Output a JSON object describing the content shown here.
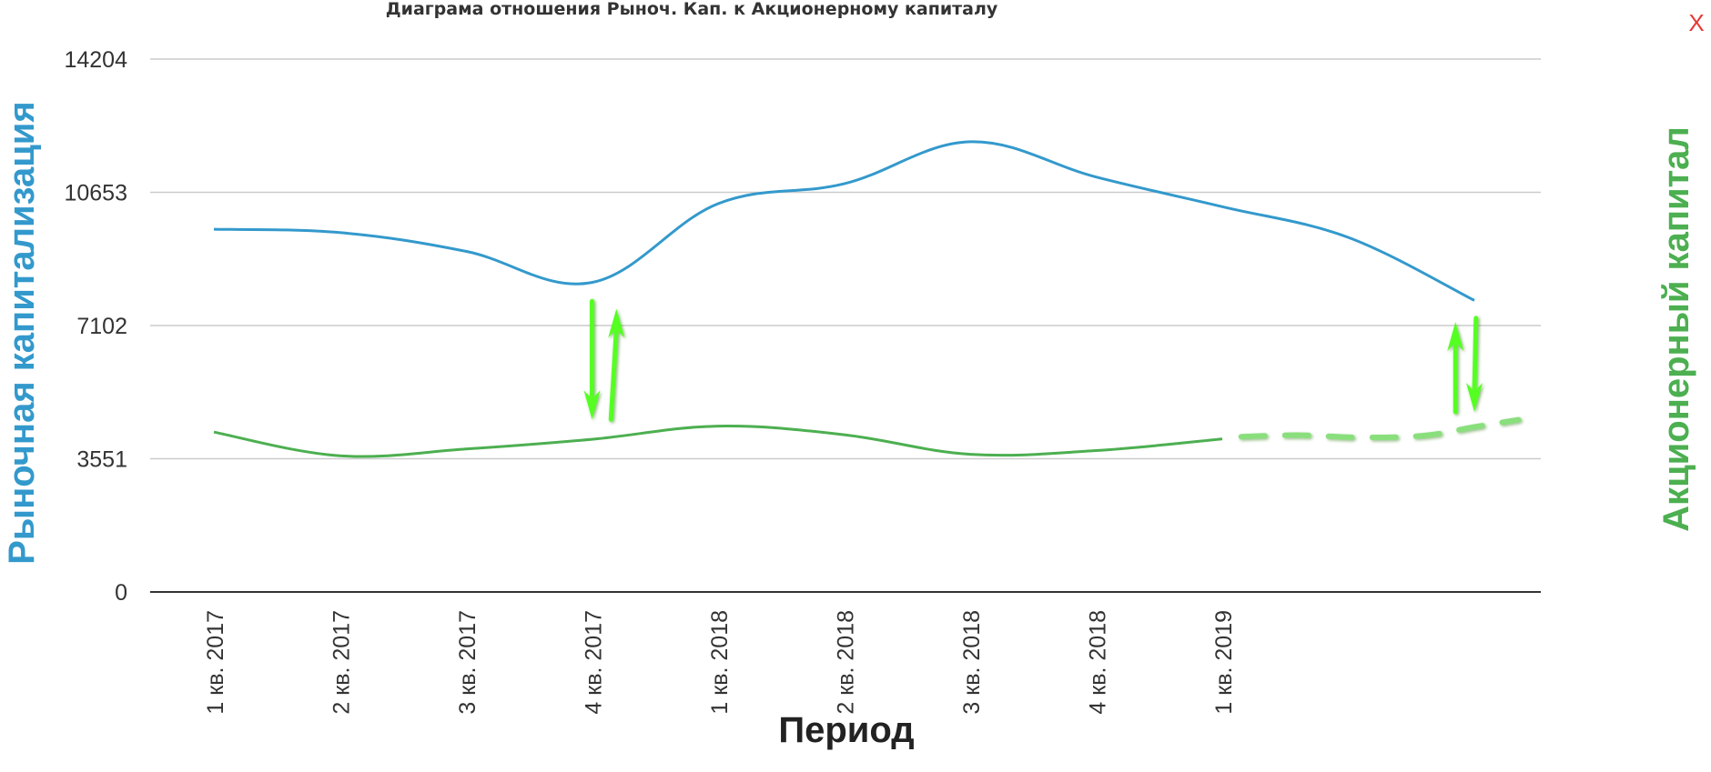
{
  "close_label": "X",
  "colors": {
    "market_cap": "#3399cc",
    "equity": "#4caf50",
    "arrows": "#55ff22",
    "grid": "#cccccc",
    "close": "#e53935"
  },
  "chart_data": {
    "type": "line",
    "title": "Диаграма отношения Рыноч. Кап. к Акционерному капиталу",
    "xlabel": "Период",
    "ylabel_left": "Рыночная капитализация",
    "ylabel_right": "Акционерный капитал",
    "ylim": [
      0,
      14204
    ],
    "yticks": [
      0,
      3551,
      7102,
      10653,
      14204
    ],
    "grid": true,
    "categories": [
      "1 кв. 2017",
      "2 кв. 2017",
      "3 кв. 2017",
      "4 кв. 2017",
      "1 кв. 2018",
      "2 кв. 2018",
      "3 кв. 2018",
      "4 кв. 2018",
      "1 кв. 2019"
    ],
    "series": [
      {
        "key": "market_cap",
        "x": [
          0,
          1,
          2,
          3,
          4,
          5,
          6,
          7,
          8,
          9,
          10
        ],
        "values": [
          9670,
          9580,
          9080,
          8250,
          10350,
          10880,
          12000,
          11060,
          10270,
          9450,
          7770
        ],
        "style": "solid"
      },
      {
        "key": "equity",
        "x": [
          0,
          1,
          2,
          3,
          4,
          5,
          6,
          7,
          8
        ],
        "values": [
          4260,
          3630,
          3810,
          4070,
          4420,
          4190,
          3670,
          3770,
          4080
        ],
        "style": "solid"
      },
      {
        "key": "equity_forecast",
        "x": [
          8.15,
          8.6,
          9.1,
          9.6,
          10.0,
          10.35
        ],
        "values": [
          4140,
          4180,
          4120,
          4170,
          4400,
          4590
        ],
        "style": "dashed"
      }
    ],
    "annotations": [
      {
        "type": "arrow",
        "x": 3.0,
        "from": 7750,
        "to": 4600
      },
      {
        "type": "arrow",
        "x": 3.15,
        "from": 4600,
        "to": 7550
      },
      {
        "type": "arrow",
        "x": 9.85,
        "from": 4800,
        "to": 7200
      },
      {
        "type": "arrow",
        "x": 10.0,
        "from": 7300,
        "to": 4800
      }
    ]
  }
}
